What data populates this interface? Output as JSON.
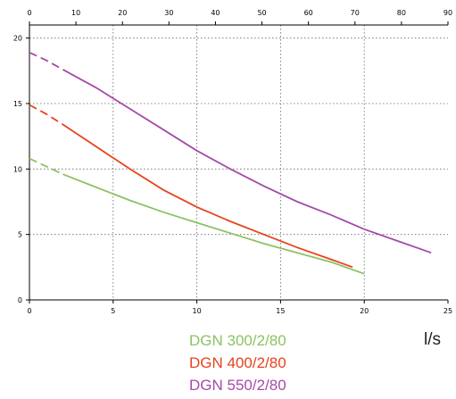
{
  "chart_data": {
    "type": "line",
    "x_bottom": {
      "min": 0,
      "max": 25,
      "ticks": [
        0,
        5,
        10,
        15,
        20,
        25
      ],
      "unit": "l/s"
    },
    "x_top": {
      "min": 0,
      "max": 90,
      "ticks": [
        0,
        10,
        20,
        30,
        40,
        50,
        60,
        70,
        80,
        90
      ]
    },
    "y": {
      "min": 0,
      "max": 21,
      "ticks": [
        0,
        5,
        10,
        15,
        20
      ]
    },
    "grid": true,
    "series": [
      {
        "name": "DGN 300/2/80",
        "color": "#8dc263",
        "points": [
          [
            0,
            10.8
          ],
          [
            1,
            10.2
          ],
          [
            2,
            9.6
          ],
          [
            4,
            8.6
          ],
          [
            6,
            7.6
          ],
          [
            8,
            6.7
          ],
          [
            10,
            5.9
          ],
          [
            12,
            5.1
          ],
          [
            14,
            4.3
          ],
          [
            16,
            3.6
          ],
          [
            18,
            2.9
          ],
          [
            20,
            2.0
          ]
        ],
        "dashed_until": 2
      },
      {
        "name": "DGN 400/2/80",
        "color": "#e8421e",
        "points": [
          [
            0,
            14.9
          ],
          [
            1,
            14.2
          ],
          [
            2,
            13.4
          ],
          [
            4,
            11.7
          ],
          [
            6,
            10.0
          ],
          [
            8,
            8.4
          ],
          [
            10,
            7.1
          ],
          [
            12,
            6.0
          ],
          [
            14,
            5.0
          ],
          [
            16,
            4.0
          ],
          [
            18,
            3.1
          ],
          [
            19.3,
            2.5
          ]
        ],
        "dashed_until": 2
      },
      {
        "name": "DGN 550/2/80",
        "color": "#a44aa8",
        "points": [
          [
            0,
            18.9
          ],
          [
            1,
            18.3
          ],
          [
            2,
            17.6
          ],
          [
            4,
            16.2
          ],
          [
            6,
            14.6
          ],
          [
            8,
            13.0
          ],
          [
            10,
            11.4
          ],
          [
            12,
            10.0
          ],
          [
            14,
            8.7
          ],
          [
            16,
            7.5
          ],
          [
            18,
            6.5
          ],
          [
            20,
            5.4
          ],
          [
            22,
            4.5
          ],
          [
            24,
            3.6
          ]
        ],
        "dashed_until": 2
      }
    ]
  }
}
